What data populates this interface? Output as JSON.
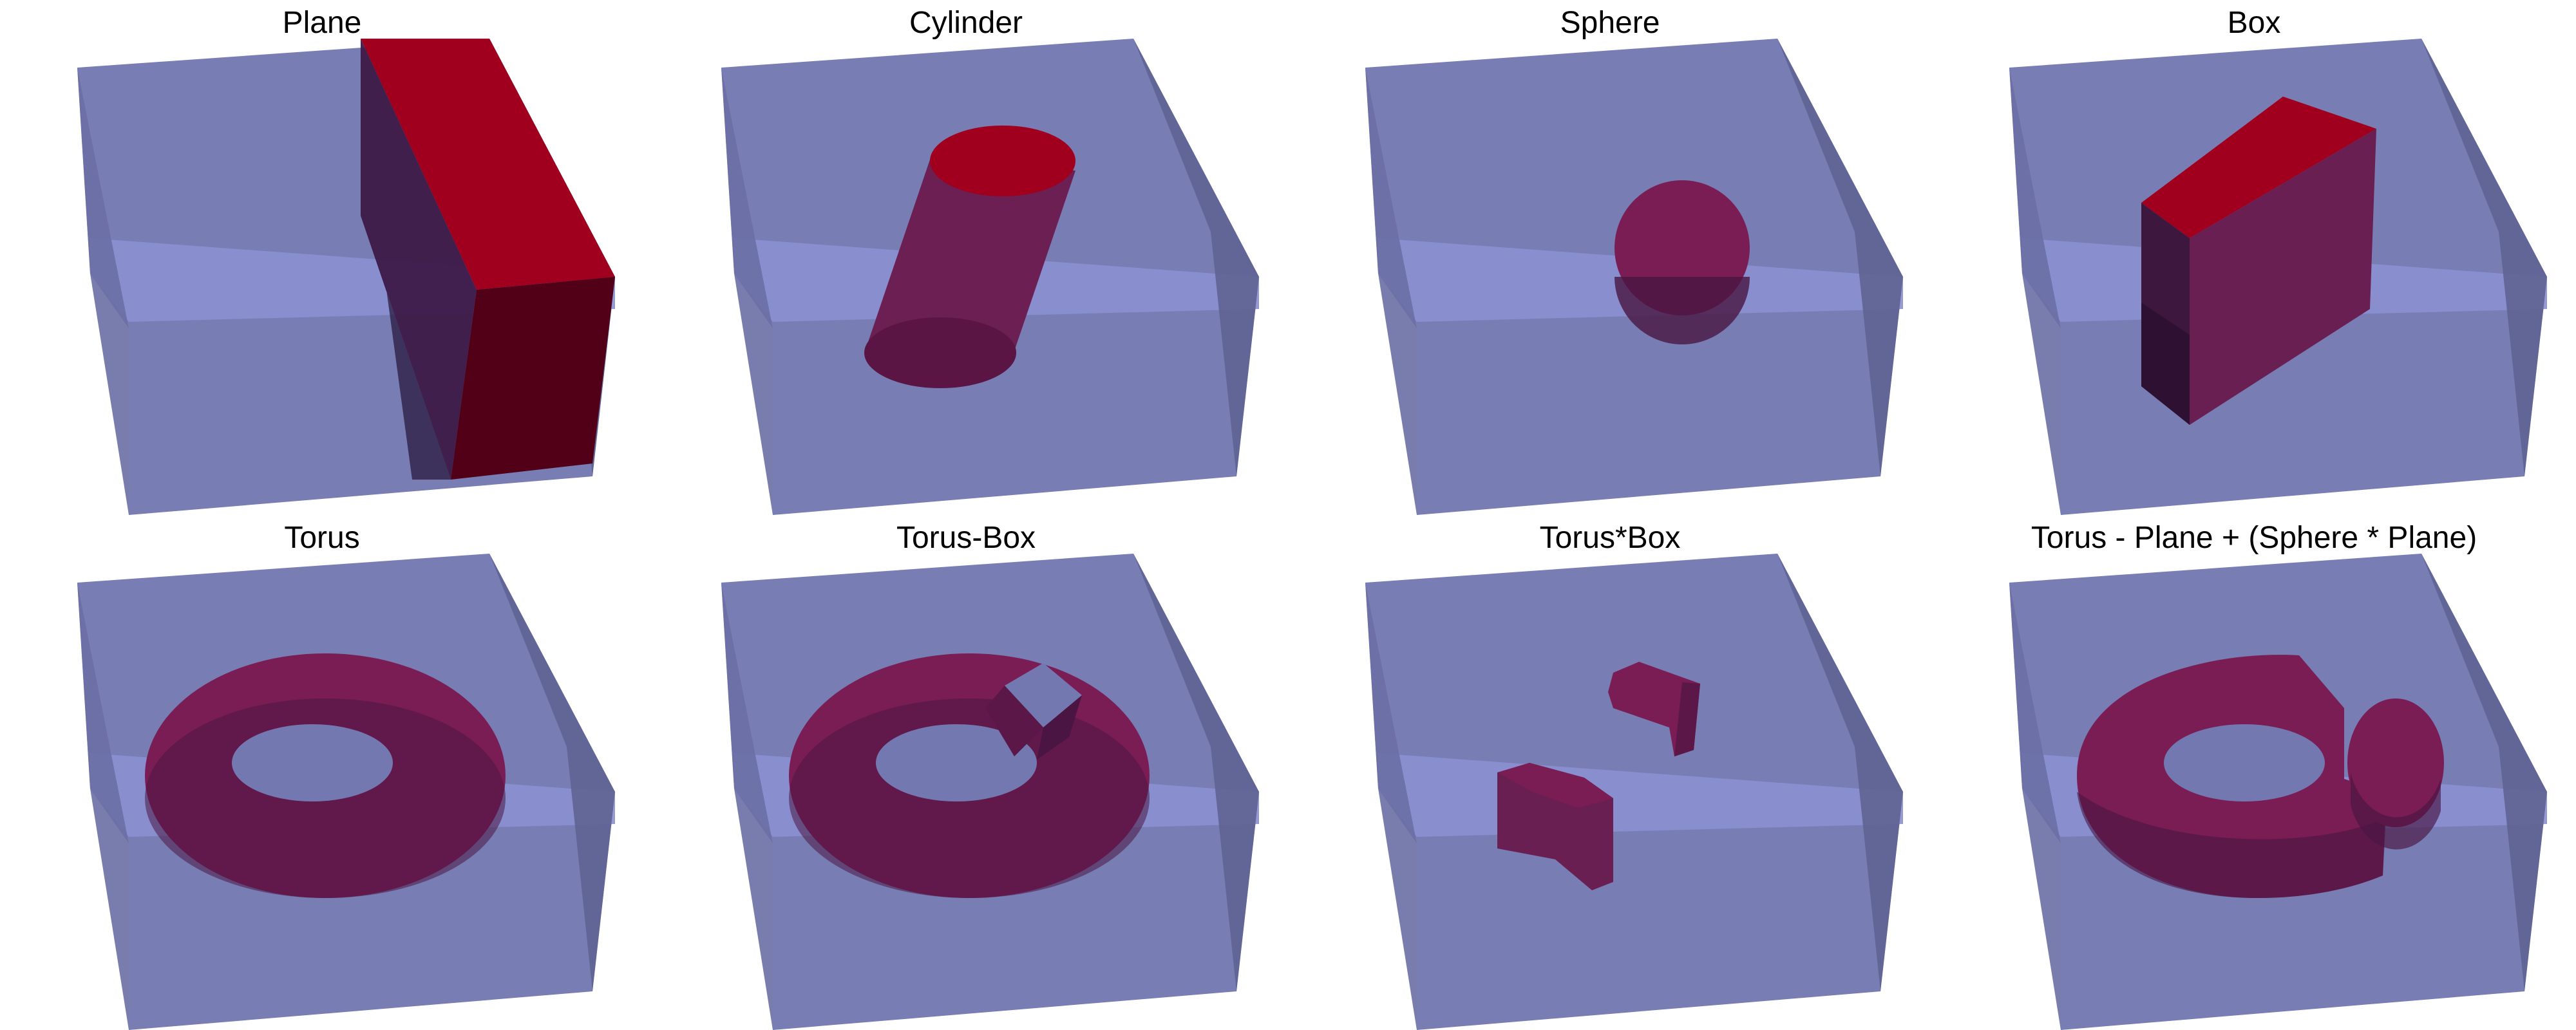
{
  "figure": {
    "panels": [
      {
        "id": "plane",
        "title": "Plane"
      },
      {
        "id": "cylinder",
        "title": "Cylinder"
      },
      {
        "id": "sphere",
        "title": "Sphere"
      },
      {
        "id": "box",
        "title": "Box"
      },
      {
        "id": "torus",
        "title": "Torus"
      },
      {
        "id": "torus-minus-box",
        "title": "Torus-Box"
      },
      {
        "id": "torus-times-box",
        "title": "Torus*Box"
      },
      {
        "id": "combined",
        "title": "Torus - Plane + (Sphere * Plane)"
      }
    ]
  },
  "colors": {
    "box_faces": "#7378b0",
    "box_dark_face": "#5d6190",
    "box_band": "#8a90d0",
    "solid_top_red": "#a0001e",
    "solid_side_red": "#5a0020",
    "solid_magenta": "#7a1d55",
    "solid_dark": "#45183f"
  }
}
